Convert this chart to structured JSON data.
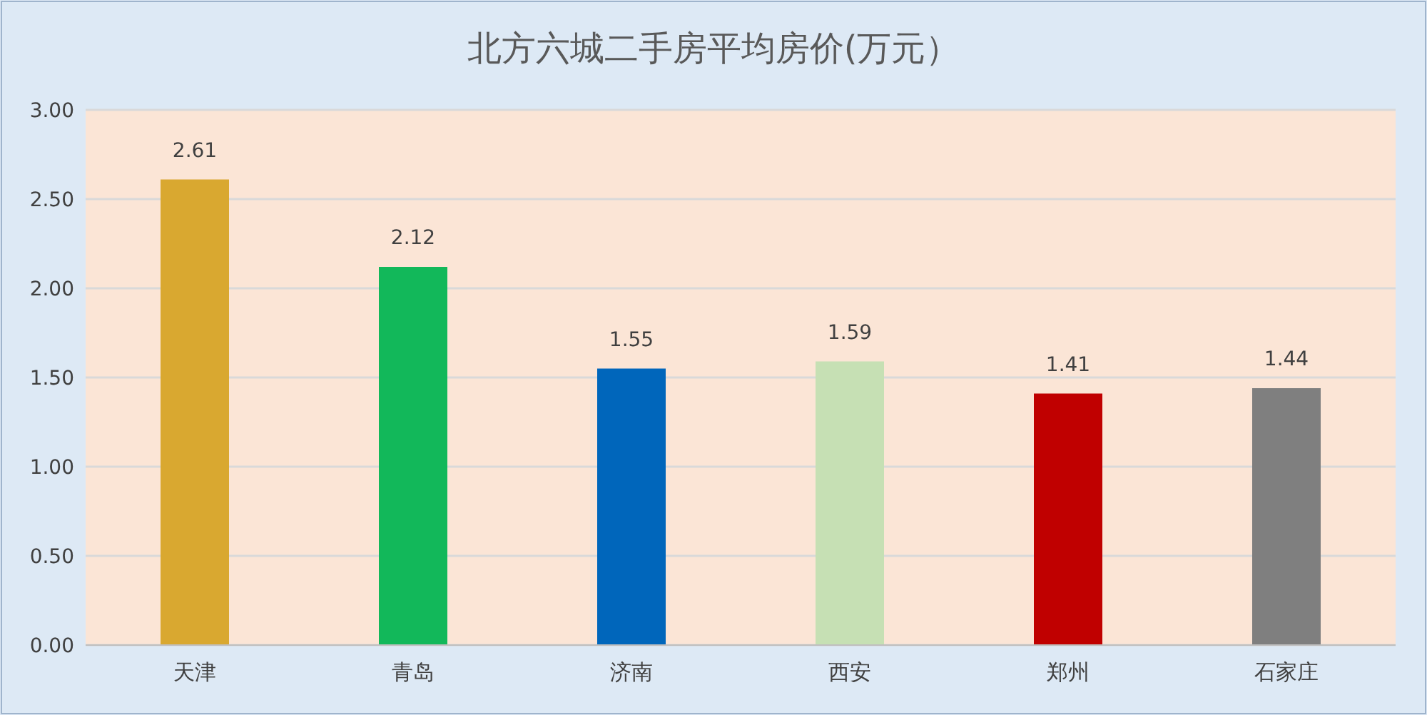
{
  "chart_data": {
    "type": "bar",
    "title": "北方六城二手房平均房价(万元）",
    "categories": [
      "天津",
      "青岛",
      "济南",
      "西安",
      "郑州",
      "石家庄"
    ],
    "values": [
      2.61,
      2.12,
      1.55,
      1.59,
      1.41,
      1.44
    ],
    "colors": [
      "#d9a830",
      "#12b85a",
      "#0066bb",
      "#c6e0b4",
      "#c00000",
      "#7f7f7f"
    ],
    "ylim": [
      0,
      3
    ],
    "yticks": [
      {
        "value": 0,
        "label": "0.00"
      },
      {
        "value": 0.5,
        "label": "0.50"
      },
      {
        "value": 1,
        "label": "1.00"
      },
      {
        "value": 1.5,
        "label": "1.50"
      },
      {
        "value": 2,
        "label": "2.00"
      },
      {
        "value": 2.5,
        "label": "2.50"
      },
      {
        "value": 3,
        "label": "3.00"
      }
    ],
    "grid": "y",
    "data_labels": true
  }
}
